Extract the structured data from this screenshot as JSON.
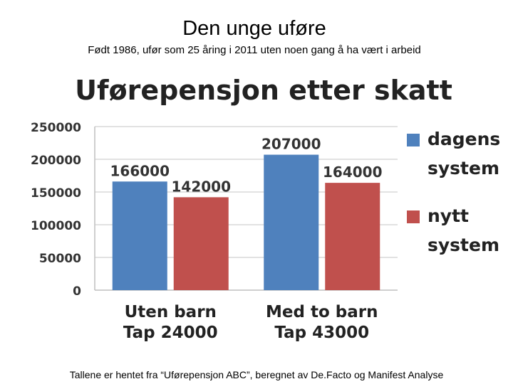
{
  "slide": {
    "title": "Den unge uføre",
    "subtitle": "Født 1986, ufør som 25 åring i 2011 uten noen gang å ha vært i arbeid",
    "footer": "Tallene er hentet fra “Uførepensjon ABC”, beregnet av De.Facto og Manifest Analyse"
  },
  "chart_data": {
    "type": "bar",
    "title": "Uførepensjon etter skatt",
    "categories": [
      [
        "Uten barn",
        "Tap 24000"
      ],
      [
        "Med to barn",
        "Tap 43000"
      ]
    ],
    "series": [
      {
        "name": [
          "dagens",
          "system"
        ],
        "values": [
          166000,
          207000
        ],
        "labels": [
          "166000",
          "207000"
        ],
        "color": "#4f81bd"
      },
      {
        "name": [
          "nytt",
          "system"
        ],
        "values": [
          142000,
          164000
        ],
        "labels": [
          "142000",
          "164000"
        ],
        "color": "#c0504d"
      }
    ],
    "ylim": [
      0,
      250000
    ],
    "yticks": [
      "0",
      "50000",
      "100000",
      "150000",
      "200000",
      "250000"
    ],
    "grid": true,
    "legend_position": "right"
  }
}
